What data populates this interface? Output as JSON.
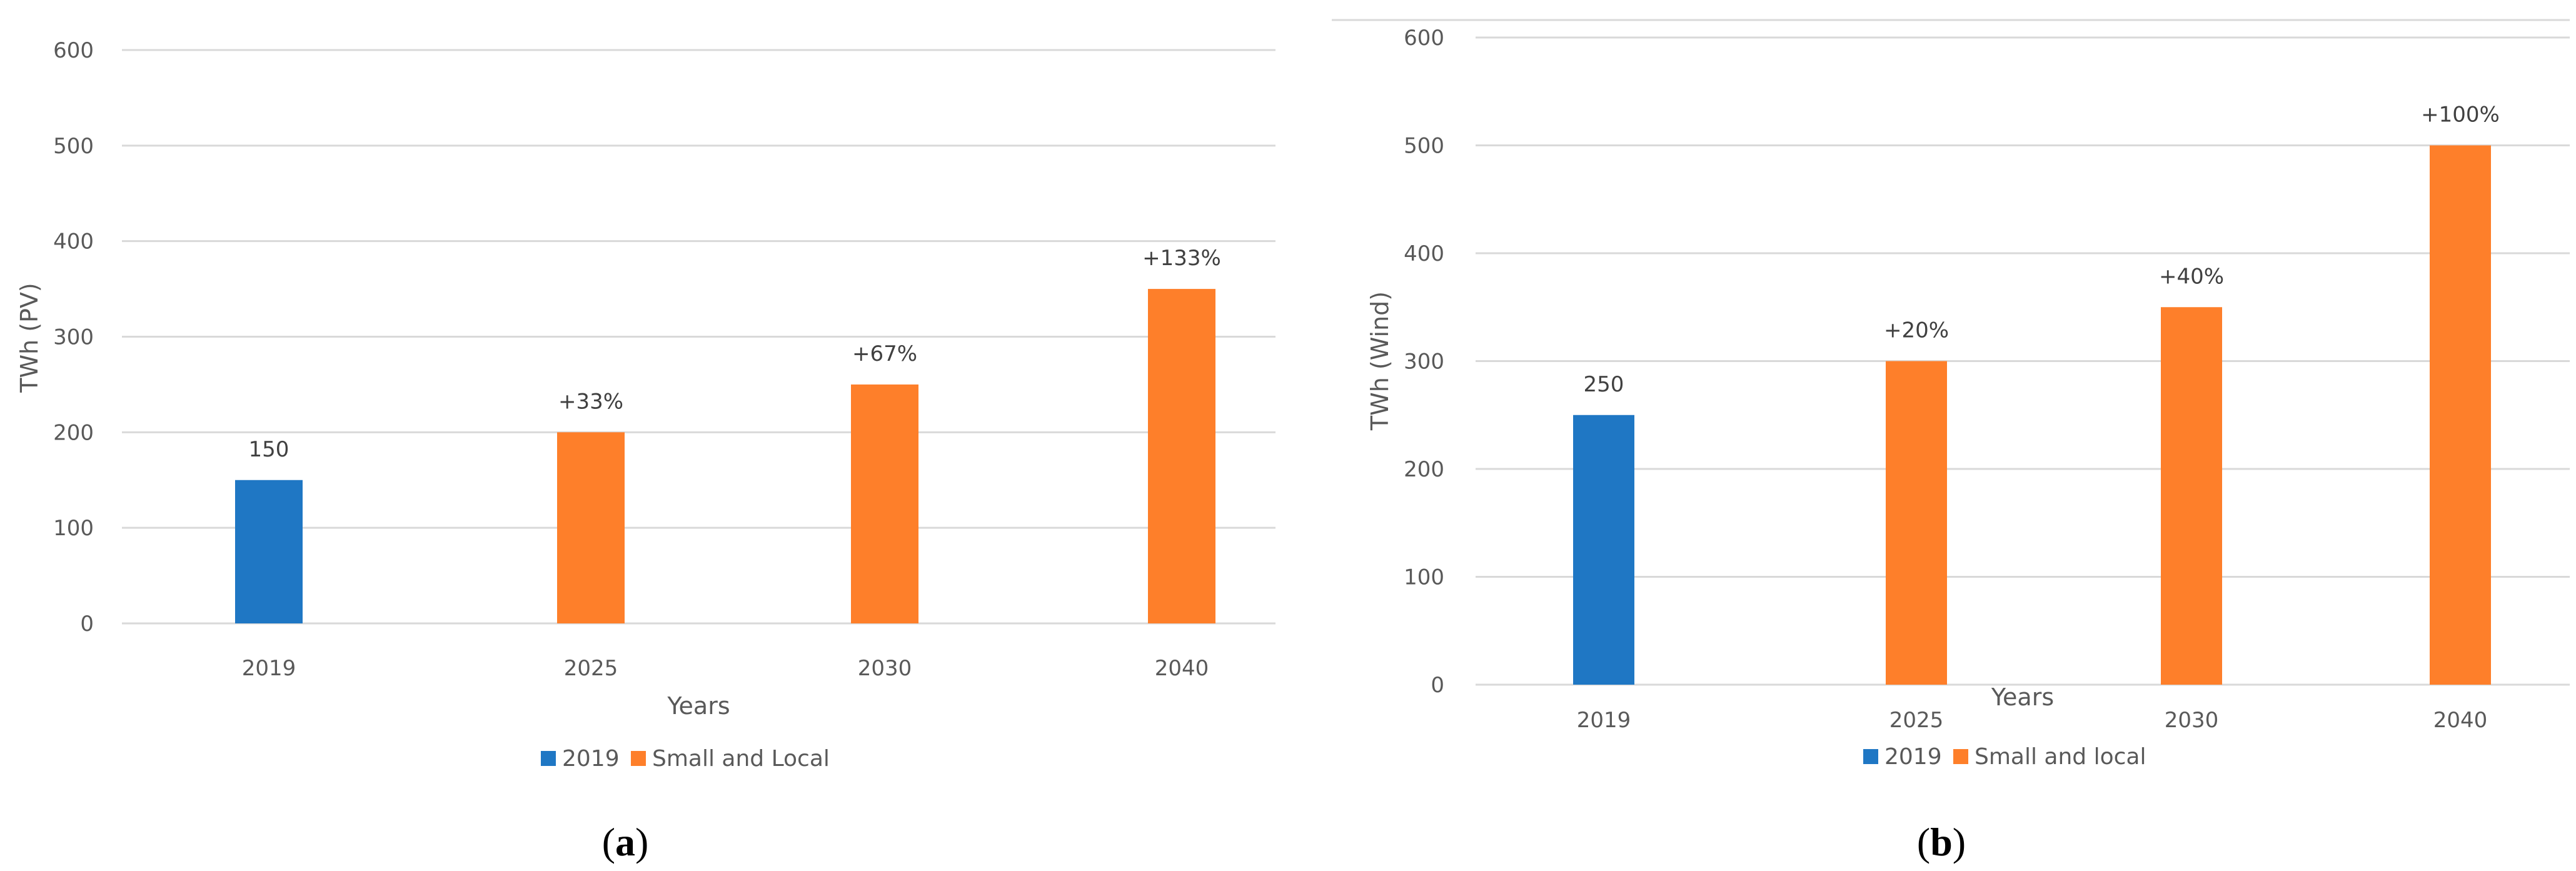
{
  "chart_data": [
    {
      "type": "bar",
      "panel": "a",
      "panel_label": "a",
      "title": "",
      "xlabel": "Years",
      "ylabel": "TWh (PV)",
      "ylim": [
        0,
        600
      ],
      "yticks": [
        0,
        100,
        200,
        300,
        400,
        500,
        600
      ],
      "categories": [
        "2019",
        "2025",
        "2030",
        "2040"
      ],
      "series": [
        {
          "name": "2019",
          "color": "#1f77c4",
          "values": [
            150,
            null,
            null,
            null
          ]
        },
        {
          "name": "Small and Local",
          "color": "#fe7f2a",
          "values": [
            null,
            200,
            250,
            350
          ]
        }
      ],
      "data_labels": [
        "150",
        "+33%",
        "+67%",
        "+133%"
      ],
      "legend": [
        "2019",
        "Small and Local"
      ],
      "legend_position": "bottom",
      "grid": true
    },
    {
      "type": "bar",
      "panel": "b",
      "panel_label": "b",
      "title": "",
      "xlabel": "Years",
      "ylabel": "TWh (Wind)",
      "ylim": [
        0,
        600
      ],
      "yticks": [
        0,
        100,
        200,
        300,
        400,
        500,
        600
      ],
      "categories": [
        "2019",
        "2025",
        "2030",
        "2040"
      ],
      "series": [
        {
          "name": "2019",
          "color": "#1f77c4",
          "values": [
            250,
            null,
            null,
            null
          ]
        },
        {
          "name": "Small and local",
          "color": "#fe7f2a",
          "values": [
            null,
            300,
            350,
            500
          ]
        }
      ],
      "data_labels": [
        "250",
        "+20%",
        "+40%",
        "+100%"
      ],
      "legend": [
        "2019",
        "Small and local"
      ],
      "legend_position": "bottom",
      "grid": true
    }
  ]
}
